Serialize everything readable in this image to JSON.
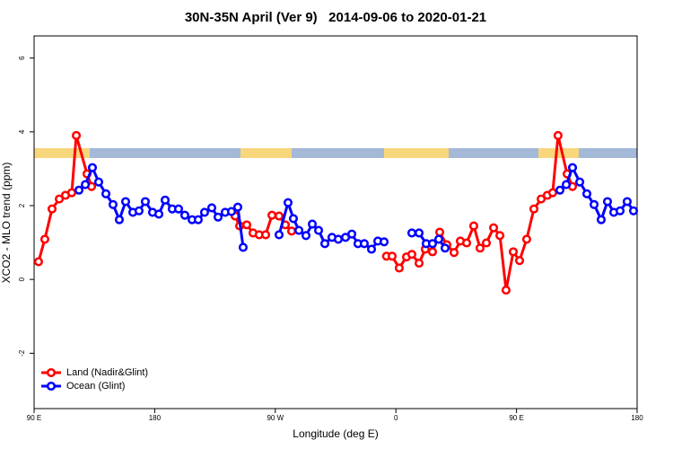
{
  "chart_data": {
    "type": "line",
    "title": "30N-35N April (Ver 9)   2014-09-06 to 2020-01-21",
    "x_label": "Longitude (deg E)",
    "y_label": "XCO2 - MLO trend (ppm)",
    "xlim": [
      90,
      540
    ],
    "ylim": [
      -3.5,
      6.6
    ],
    "xticks": [
      {
        "value": 90,
        "label": "90 E"
      },
      180,
      {
        "value": 270,
        "label": "90 W"
      },
      {
        "value": 360,
        "label": "0"
      },
      {
        "value": 450,
        "label": "90 E"
      },
      {
        "value": 540,
        "label": "180"
      }
    ],
    "yticks": [
      -2,
      0,
      2,
      4,
      6
    ],
    "legend": "bottom-left",
    "series": [
      {
        "name": "Land (Nadir&Glint)",
        "color": "#ff0000",
        "x": [
          93.3,
          98,
          103.4,
          108.8,
          113.4,
          118.1,
          121.5,
          129.5,
          132.9,
          null,
          240,
          243.4,
          248.7,
          253.4,
          258,
          262.8,
          267.5,
          272.8,
          277.5,
          282.2,
          null,
          353,
          357.2,
          362.5,
          367.9,
          371.9,
          377.3,
          381.9,
          387.3,
          392.7,
          398,
          403.4,
          408.1,
          412.8,
          418.1,
          422.8,
          427.5,
          432.9,
          437.6,
          442.2,
          447.6,
          452.3,
          457.6,
          463,
          468.4,
          473,
          477,
          481,
          487.8,
          491.8
        ],
        "values": [
          0.48,
          1.09,
          1.91,
          2.18,
          2.28,
          2.35,
          3.9,
          2.86,
          2.52,
          null,
          1.72,
          1.45,
          1.48,
          1.26,
          1.21,
          1.21,
          1.74,
          1.72,
          1.48,
          1.31,
          null,
          0.63,
          0.63,
          0.31,
          0.61,
          0.68,
          0.44,
          0.82,
          0.75,
          1.28,
          0.94,
          0.73,
          1.04,
          0.99,
          1.45,
          0.85,
          0.99,
          1.4,
          1.19,
          -0.29,
          0.75,
          0.51,
          1.09,
          1.91,
          2.18,
          2.28,
          2.35,
          3.9,
          2.86,
          2.52
        ]
      },
      {
        "name": "Ocean (Glint)",
        "color": "#0000ff",
        "x": [
          123.5,
          128.2,
          133.5,
          138.2,
          143.6,
          148.9,
          153.6,
          158.3,
          163.7,
          168.3,
          173,
          178.4,
          183.1,
          187.8,
          193.1,
          197.8,
          202.5,
          207.9,
          212.5,
          217.2,
          222.6,
          227.3,
          232.6,
          237.3,
          242,
          246,
          null,
          272.8,
          279.5,
          283.5,
          287.6,
          292.9,
          297.6,
          302.3,
          307,
          312.3,
          317,
          322.4,
          327.1,
          331.7,
          336.4,
          341.8,
          346.5,
          351.2,
          null,
          371.9,
          377.3,
          382.6,
          387.3,
          392,
          396.7,
          null,
          482.4,
          487.1,
          491.8,
          497.2,
          502.5,
          507.9,
          513.2,
          517.9,
          522.6,
          527.3,
          532.6,
          537.3
        ],
        "values": [
          2.42,
          2.57,
          3.03,
          2.64,
          2.32,
          2.03,
          1.62,
          2.11,
          1.82,
          1.86,
          2.11,
          1.82,
          1.77,
          2.15,
          1.91,
          1.91,
          1.74,
          1.62,
          1.62,
          1.82,
          1.94,
          1.69,
          1.82,
          1.84,
          1.96,
          0.87,
          null,
          1.21,
          2.08,
          1.65,
          1.33,
          1.19,
          1.5,
          1.33,
          0.97,
          1.14,
          1.09,
          1.14,
          1.23,
          0.97,
          0.97,
          0.82,
          1.04,
          1.02,
          null,
          1.26,
          1.26,
          0.97,
          0.97,
          1.09,
          0.85,
          null,
          2.42,
          2.57,
          3.03,
          2.64,
          2.32,
          2.03,
          1.62,
          2.11,
          1.82,
          1.86,
          2.11,
          1.86
        ]
      }
    ]
  }
}
